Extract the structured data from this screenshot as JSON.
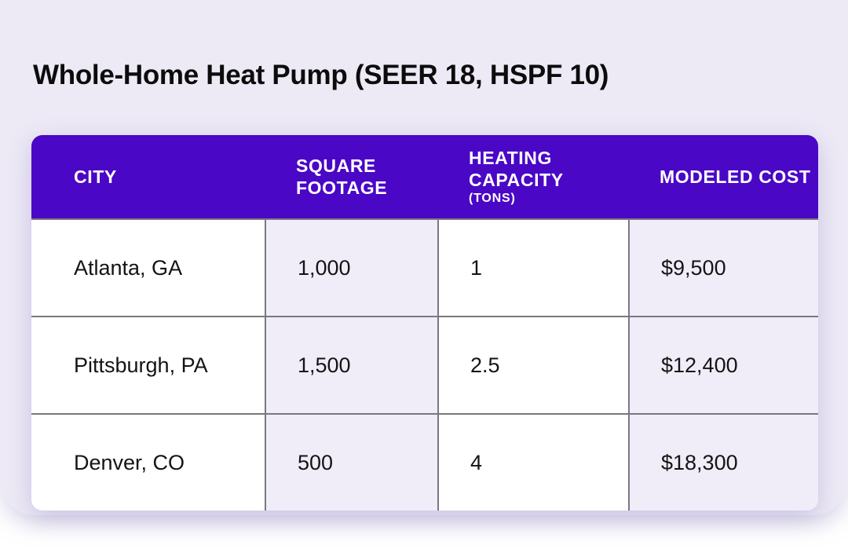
{
  "page": {
    "title": "Whole-Home Heat Pump (SEER 18, HSPF 10)"
  },
  "header": {
    "columns": [
      {
        "label": "CITY",
        "sublabel": ""
      },
      {
        "label": "SQUARE FOOTAGE",
        "sublabel": ""
      },
      {
        "label": "HEATING CAPACITY",
        "sublabel": "(TONS)"
      },
      {
        "label": "MODELED COST",
        "sublabel": ""
      }
    ]
  },
  "chart_data": {
    "type": "table",
    "title": "Whole-Home Heat Pump (SEER 18, HSPF 10)",
    "columns": [
      "CITY",
      "SQUARE FOOTAGE",
      "HEATING CAPACITY (TONS)",
      "MODELED COST"
    ],
    "rows": [
      [
        "Atlanta, GA",
        "1,000",
        "1",
        "$9,500"
      ],
      [
        "Pittsburgh, PA",
        "1,500",
        "2.5",
        "$12,400"
      ],
      [
        "Denver, CO",
        "500",
        "4",
        "$18,300"
      ]
    ]
  },
  "colors": {
    "header_bg": "#4A07C6",
    "header_text": "#FFFFFF",
    "panel_bg": "#EDEAF6",
    "cell_bg": "#FFFFFF",
    "cell_alt_bg": "#F0EDF9",
    "grid_line": "#7A7780",
    "body_text": "#141414",
    "title_text": "#0C0C0C",
    "canvas_bg": "#FFFFFF"
  }
}
